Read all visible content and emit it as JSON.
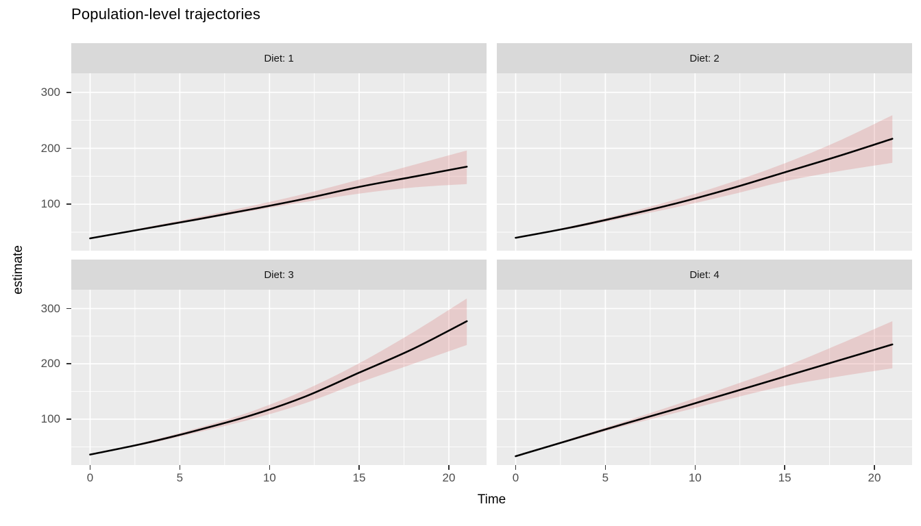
{
  "chart_data": {
    "type": "line",
    "title": "Population-level trajectories",
    "xlabel": "Time",
    "ylabel": "estimate",
    "grid": true,
    "legend": "none",
    "x": [
      0,
      3,
      6,
      9,
      12,
      15,
      18,
      21
    ],
    "xlim": [
      -1.05,
      22.1
    ],
    "ylim": [
      17,
      334
    ],
    "x_ticks": [
      0,
      5,
      10,
      15,
      20
    ],
    "x_minor_ticks": [
      2.5,
      7.5,
      12.5,
      17.5
    ],
    "y_ticks": [
      300,
      200,
      100
    ],
    "y_minor_ticks": [
      50,
      150,
      250
    ],
    "facets": [
      {
        "label": "Diet: 1",
        "line": [
          39,
          56,
          73,
          91,
          110,
          131,
          149,
          167
        ],
        "lower": [
          39,
          55,
          71,
          88,
          104,
          119,
          130,
          136
        ],
        "upper": [
          39,
          58,
          77,
          97,
          119,
          144,
          170,
          196
        ]
      },
      {
        "label": "Diet: 2",
        "line": [
          40,
          58,
          79,
          102,
          128,
          157,
          186,
          217
        ],
        "lower": [
          40,
          56,
          75,
          95,
          117,
          141,
          159,
          174
        ],
        "upper": [
          40,
          60,
          83,
          109,
          139,
          173,
          213,
          259
        ]
      },
      {
        "label": "Diet: 3",
        "line": [
          36,
          56,
          80,
          107,
          141,
          184,
          227,
          277
        ],
        "lower": [
          36,
          54,
          76,
          100,
          129,
          166,
          200,
          234
        ],
        "upper": [
          36,
          58,
          84,
          114,
          153,
          201,
          257,
          318
        ]
      },
      {
        "label": "Diet: 4",
        "line": [
          33,
          62,
          91,
          119,
          148,
          177,
          206,
          235
        ],
        "lower": [
          33,
          60,
          87,
          112,
          137,
          160,
          177,
          192
        ],
        "upper": [
          33,
          64,
          95,
          127,
          160,
          195,
          235,
          277
        ]
      }
    ],
    "colors": {
      "line": "#000000",
      "ribbon_fill": "#d66a6c",
      "ribbon_opacity": 0.25,
      "panel_bg": "#ebebeb",
      "strip_bg": "#d9d9d9",
      "grid": "#ffffff",
      "tick_label": "#4d4d4d",
      "tick_mark": "#333333",
      "axis_title": "#000000"
    }
  }
}
